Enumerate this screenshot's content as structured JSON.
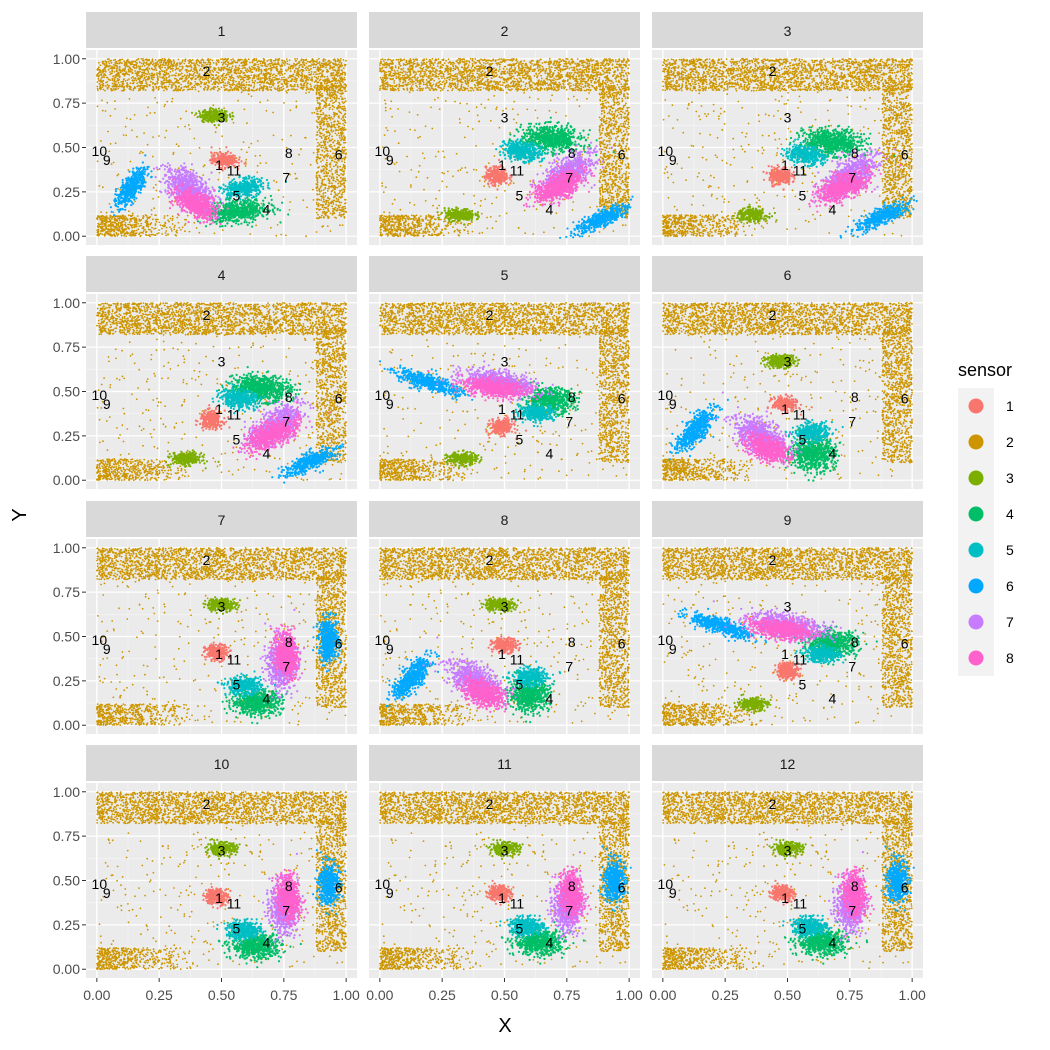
{
  "chart_data": {
    "type": "scatter",
    "faceted": true,
    "facet_labels": [
      "1",
      "2",
      "3",
      "4",
      "5",
      "6",
      "7",
      "8",
      "9",
      "10",
      "11",
      "12"
    ],
    "xlabel": "X",
    "ylabel": "Y",
    "xlim": [
      0,
      1
    ],
    "ylim": [
      0,
      1
    ],
    "x_ticks": [
      "0.00",
      "0.25",
      "0.50",
      "0.75",
      "1.00"
    ],
    "y_ticks": [
      "0.00",
      "0.25",
      "0.50",
      "0.75",
      "1.00"
    ],
    "grid": true,
    "legend": {
      "title": "sensor",
      "placement": "right",
      "entries": [
        {
          "label": "1",
          "color": "#F8766D"
        },
        {
          "label": "2",
          "color": "#CD9600"
        },
        {
          "label": "3",
          "color": "#7CAE00"
        },
        {
          "label": "4",
          "color": "#00BE67"
        },
        {
          "label": "5",
          "color": "#00BFC4"
        },
        {
          "label": "6",
          "color": "#00A9FF"
        },
        {
          "label": "7",
          "color": "#C77CFF"
        },
        {
          "label": "8",
          "color": "#FF61CC"
        }
      ]
    },
    "node_labels": {
      "1": [
        0.49,
        0.4
      ],
      "2": [
        0.44,
        0.93
      ],
      "3": [
        0.5,
        0.67
      ],
      "4": [
        0.68,
        0.15
      ],
      "5": [
        0.56,
        0.23
      ],
      "6": [
        0.97,
        0.46
      ],
      "7": [
        0.76,
        0.33
      ],
      "8": [
        0.77,
        0.47
      ],
      "9": [
        0.04,
        0.43
      ],
      "10": [
        0.01,
        0.48
      ],
      "11": [
        0.55,
        0.37
      ]
    },
    "panels": [
      {
        "facet": "1",
        "clusters": [
          {
            "sensor": "1",
            "cx": 0.51,
            "cy": 0.43,
            "rx": 0.05,
            "ry": 0.04,
            "rot": 0
          },
          {
            "sensor": "3",
            "cx": 0.47,
            "cy": 0.68,
            "rx": 0.06,
            "ry": 0.035,
            "rot": 0
          },
          {
            "sensor": "4",
            "cx": 0.57,
            "cy": 0.14,
            "rx": 0.12,
            "ry": 0.06,
            "rot": 10
          },
          {
            "sensor": "5",
            "cx": 0.59,
            "cy": 0.27,
            "rx": 0.08,
            "ry": 0.05,
            "rot": 20
          },
          {
            "sensor": "6",
            "cx": 0.14,
            "cy": 0.28,
            "rx": 0.04,
            "ry": 0.12,
            "rot": -25
          },
          {
            "sensor": "7",
            "cx": 0.37,
            "cy": 0.27,
            "rx": 0.07,
            "ry": 0.12,
            "rot": 35
          },
          {
            "sensor": "8",
            "cx": 0.4,
            "cy": 0.18,
            "rx": 0.06,
            "ry": 0.1,
            "rot": 45
          }
        ]
      },
      {
        "facet": "2",
        "clusters": [
          {
            "sensor": "1",
            "cx": 0.47,
            "cy": 0.34,
            "rx": 0.045,
            "ry": 0.05,
            "rot": 0
          },
          {
            "sensor": "3",
            "cx": 0.32,
            "cy": 0.12,
            "rx": 0.06,
            "ry": 0.035,
            "rot": 0
          },
          {
            "sensor": "4",
            "cx": 0.69,
            "cy": 0.55,
            "rx": 0.12,
            "ry": 0.07,
            "rot": -10
          },
          {
            "sensor": "5",
            "cx": 0.57,
            "cy": 0.48,
            "rx": 0.08,
            "ry": 0.05,
            "rot": -15
          },
          {
            "sensor": "6",
            "cx": 0.89,
            "cy": 0.1,
            "rx": 0.04,
            "ry": 0.12,
            "rot": -55
          },
          {
            "sensor": "7",
            "cx": 0.75,
            "cy": 0.35,
            "rx": 0.07,
            "ry": 0.14,
            "rot": -40
          },
          {
            "sensor": "8",
            "cx": 0.72,
            "cy": 0.28,
            "rx": 0.06,
            "ry": 0.12,
            "rot": -50
          }
        ]
      },
      {
        "facet": "3",
        "clusters": [
          {
            "sensor": "1",
            "cx": 0.47,
            "cy": 0.34,
            "rx": 0.045,
            "ry": 0.05,
            "rot": 0
          },
          {
            "sensor": "3",
            "cx": 0.36,
            "cy": 0.12,
            "rx": 0.06,
            "ry": 0.035,
            "rot": 0
          },
          {
            "sensor": "4",
            "cx": 0.68,
            "cy": 0.53,
            "rx": 0.12,
            "ry": 0.07,
            "rot": -10
          },
          {
            "sensor": "5",
            "cx": 0.57,
            "cy": 0.46,
            "rx": 0.08,
            "ry": 0.05,
            "rot": -15
          },
          {
            "sensor": "6",
            "cx": 0.88,
            "cy": 0.11,
            "rx": 0.04,
            "ry": 0.12,
            "rot": -55
          },
          {
            "sensor": "7",
            "cx": 0.75,
            "cy": 0.34,
            "rx": 0.07,
            "ry": 0.14,
            "rot": -40
          },
          {
            "sensor": "8",
            "cx": 0.72,
            "cy": 0.28,
            "rx": 0.06,
            "ry": 0.12,
            "rot": -50
          }
        ]
      },
      {
        "facet": "4",
        "clusters": [
          {
            "sensor": "1",
            "cx": 0.46,
            "cy": 0.34,
            "rx": 0.045,
            "ry": 0.05,
            "rot": 0
          },
          {
            "sensor": "3",
            "cx": 0.36,
            "cy": 0.12,
            "rx": 0.06,
            "ry": 0.035,
            "rot": 0
          },
          {
            "sensor": "4",
            "cx": 0.66,
            "cy": 0.52,
            "rx": 0.12,
            "ry": 0.07,
            "rot": -10
          },
          {
            "sensor": "5",
            "cx": 0.57,
            "cy": 0.46,
            "rx": 0.08,
            "ry": 0.05,
            "rot": -15
          },
          {
            "sensor": "6",
            "cx": 0.85,
            "cy": 0.1,
            "rx": 0.04,
            "ry": 0.12,
            "rot": -55
          },
          {
            "sensor": "7",
            "cx": 0.72,
            "cy": 0.31,
            "rx": 0.07,
            "ry": 0.14,
            "rot": -40
          },
          {
            "sensor": "8",
            "cx": 0.7,
            "cy": 0.26,
            "rx": 0.06,
            "ry": 0.12,
            "rot": -50
          }
        ]
      },
      {
        "facet": "5",
        "clusters": [
          {
            "sensor": "1",
            "cx": 0.49,
            "cy": 0.3,
            "rx": 0.045,
            "ry": 0.045,
            "rot": 0
          },
          {
            "sensor": "3",
            "cx": 0.33,
            "cy": 0.12,
            "rx": 0.06,
            "ry": 0.035,
            "rot": 0
          },
          {
            "sensor": "4",
            "cx": 0.68,
            "cy": 0.45,
            "rx": 0.1,
            "ry": 0.07,
            "rot": 0
          },
          {
            "sensor": "5",
            "cx": 0.63,
            "cy": 0.38,
            "rx": 0.07,
            "ry": 0.045,
            "rot": 0
          },
          {
            "sensor": "6",
            "cx": 0.2,
            "cy": 0.55,
            "rx": 0.04,
            "ry": 0.14,
            "rot": 65
          },
          {
            "sensor": "7",
            "cx": 0.48,
            "cy": 0.55,
            "rx": 0.06,
            "ry": 0.15,
            "rot": 75
          },
          {
            "sensor": "8",
            "cx": 0.46,
            "cy": 0.52,
            "rx": 0.05,
            "ry": 0.13,
            "rot": 80
          }
        ]
      },
      {
        "facet": "6",
        "clusters": [
          {
            "sensor": "1",
            "cx": 0.49,
            "cy": 0.43,
            "rx": 0.05,
            "ry": 0.04,
            "rot": 0
          },
          {
            "sensor": "3",
            "cx": 0.47,
            "cy": 0.67,
            "rx": 0.06,
            "ry": 0.035,
            "rot": 0
          },
          {
            "sensor": "4",
            "cx": 0.6,
            "cy": 0.15,
            "rx": 0.09,
            "ry": 0.09,
            "rot": 0
          },
          {
            "sensor": "5",
            "cx": 0.6,
            "cy": 0.27,
            "rx": 0.07,
            "ry": 0.05,
            "rot": 10
          },
          {
            "sensor": "6",
            "cx": 0.13,
            "cy": 0.28,
            "rx": 0.045,
            "ry": 0.13,
            "rot": -30
          },
          {
            "sensor": "7",
            "cx": 0.39,
            "cy": 0.25,
            "rx": 0.07,
            "ry": 0.13,
            "rot": 45
          },
          {
            "sensor": "8",
            "cx": 0.42,
            "cy": 0.18,
            "rx": 0.06,
            "ry": 0.1,
            "rot": 50
          }
        ]
      },
      {
        "facet": "7",
        "clusters": [
          {
            "sensor": "1",
            "cx": 0.48,
            "cy": 0.41,
            "rx": 0.045,
            "ry": 0.045,
            "rot": 0
          },
          {
            "sensor": "3",
            "cx": 0.5,
            "cy": 0.68,
            "rx": 0.06,
            "ry": 0.035,
            "rot": 0
          },
          {
            "sensor": "4",
            "cx": 0.64,
            "cy": 0.13,
            "rx": 0.1,
            "ry": 0.07,
            "rot": 0
          },
          {
            "sensor": "5",
            "cx": 0.59,
            "cy": 0.22,
            "rx": 0.07,
            "ry": 0.05,
            "rot": 0
          },
          {
            "sensor": "6",
            "cx": 0.93,
            "cy": 0.48,
            "rx": 0.04,
            "ry": 0.12,
            "rot": 0
          },
          {
            "sensor": "7",
            "cx": 0.74,
            "cy": 0.35,
            "rx": 0.055,
            "ry": 0.14,
            "rot": 0
          },
          {
            "sensor": "8",
            "cx": 0.76,
            "cy": 0.4,
            "rx": 0.045,
            "ry": 0.13,
            "rot": 5
          }
        ]
      },
      {
        "facet": "8",
        "clusters": [
          {
            "sensor": "1",
            "cx": 0.5,
            "cy": 0.45,
            "rx": 0.05,
            "ry": 0.04,
            "rot": 0
          },
          {
            "sensor": "3",
            "cx": 0.48,
            "cy": 0.68,
            "rx": 0.06,
            "ry": 0.035,
            "rot": 0
          },
          {
            "sensor": "4",
            "cx": 0.6,
            "cy": 0.17,
            "rx": 0.08,
            "ry": 0.09,
            "rot": 0
          },
          {
            "sensor": "5",
            "cx": 0.6,
            "cy": 0.27,
            "rx": 0.07,
            "ry": 0.05,
            "rot": 10
          },
          {
            "sensor": "6",
            "cx": 0.13,
            "cy": 0.27,
            "rx": 0.045,
            "ry": 0.13,
            "rot": -30
          },
          {
            "sensor": "7",
            "cx": 0.38,
            "cy": 0.25,
            "rx": 0.07,
            "ry": 0.13,
            "rot": 45
          },
          {
            "sensor": "8",
            "cx": 0.42,
            "cy": 0.18,
            "rx": 0.06,
            "ry": 0.1,
            "rot": 50
          }
        ]
      },
      {
        "facet": "9",
        "clusters": [
          {
            "sensor": "1",
            "cx": 0.5,
            "cy": 0.31,
            "rx": 0.045,
            "ry": 0.045,
            "rot": 0
          },
          {
            "sensor": "3",
            "cx": 0.36,
            "cy": 0.12,
            "rx": 0.06,
            "ry": 0.035,
            "rot": 0
          },
          {
            "sensor": "4",
            "cx": 0.68,
            "cy": 0.46,
            "rx": 0.1,
            "ry": 0.07,
            "rot": 0
          },
          {
            "sensor": "5",
            "cx": 0.64,
            "cy": 0.4,
            "rx": 0.07,
            "ry": 0.045,
            "rot": 0
          },
          {
            "sensor": "6",
            "cx": 0.23,
            "cy": 0.56,
            "rx": 0.04,
            "ry": 0.14,
            "rot": 65
          },
          {
            "sensor": "7",
            "cx": 0.5,
            "cy": 0.56,
            "rx": 0.06,
            "ry": 0.15,
            "rot": 75
          },
          {
            "sensor": "8",
            "cx": 0.48,
            "cy": 0.54,
            "rx": 0.05,
            "ry": 0.13,
            "rot": 80
          }
        ]
      },
      {
        "facet": "10",
        "clusters": [
          {
            "sensor": "1",
            "cx": 0.48,
            "cy": 0.41,
            "rx": 0.045,
            "ry": 0.045,
            "rot": 0
          },
          {
            "sensor": "3",
            "cx": 0.5,
            "cy": 0.68,
            "rx": 0.06,
            "ry": 0.035,
            "rot": 0
          },
          {
            "sensor": "4",
            "cx": 0.64,
            "cy": 0.13,
            "rx": 0.1,
            "ry": 0.07,
            "rot": 0
          },
          {
            "sensor": "5",
            "cx": 0.59,
            "cy": 0.22,
            "rx": 0.07,
            "ry": 0.05,
            "rot": 0
          },
          {
            "sensor": "6",
            "cx": 0.93,
            "cy": 0.48,
            "rx": 0.04,
            "ry": 0.12,
            "rot": 0
          },
          {
            "sensor": "7",
            "cx": 0.75,
            "cy": 0.35,
            "rx": 0.055,
            "ry": 0.14,
            "rot": 0
          },
          {
            "sensor": "8",
            "cx": 0.77,
            "cy": 0.4,
            "rx": 0.045,
            "ry": 0.13,
            "rot": 5
          }
        ]
      },
      {
        "facet": "11",
        "clusters": [
          {
            "sensor": "1",
            "cx": 0.48,
            "cy": 0.43,
            "rx": 0.045,
            "ry": 0.045,
            "rot": 0
          },
          {
            "sensor": "3",
            "cx": 0.5,
            "cy": 0.68,
            "rx": 0.06,
            "ry": 0.035,
            "rot": 0
          },
          {
            "sensor": "4",
            "cx": 0.64,
            "cy": 0.15,
            "rx": 0.1,
            "ry": 0.07,
            "rot": 0
          },
          {
            "sensor": "5",
            "cx": 0.59,
            "cy": 0.24,
            "rx": 0.07,
            "ry": 0.05,
            "rot": 0
          },
          {
            "sensor": "6",
            "cx": 0.94,
            "cy": 0.5,
            "rx": 0.04,
            "ry": 0.12,
            "rot": 0
          },
          {
            "sensor": "7",
            "cx": 0.75,
            "cy": 0.36,
            "rx": 0.055,
            "ry": 0.14,
            "rot": 0
          },
          {
            "sensor": "8",
            "cx": 0.77,
            "cy": 0.42,
            "rx": 0.045,
            "ry": 0.13,
            "rot": 5
          }
        ]
      },
      {
        "facet": "12",
        "clusters": [
          {
            "sensor": "1",
            "cx": 0.48,
            "cy": 0.43,
            "rx": 0.045,
            "ry": 0.045,
            "rot": 0
          },
          {
            "sensor": "3",
            "cx": 0.5,
            "cy": 0.68,
            "rx": 0.06,
            "ry": 0.035,
            "rot": 0
          },
          {
            "sensor": "4",
            "cx": 0.64,
            "cy": 0.15,
            "rx": 0.1,
            "ry": 0.07,
            "rot": 0
          },
          {
            "sensor": "5",
            "cx": 0.59,
            "cy": 0.24,
            "rx": 0.07,
            "ry": 0.05,
            "rot": 0
          },
          {
            "sensor": "6",
            "cx": 0.94,
            "cy": 0.5,
            "rx": 0.04,
            "ry": 0.12,
            "rot": 0
          },
          {
            "sensor": "7",
            "cx": 0.75,
            "cy": 0.36,
            "rx": 0.055,
            "ry": 0.14,
            "rot": 0
          },
          {
            "sensor": "8",
            "cx": 0.77,
            "cy": 0.42,
            "rx": 0.045,
            "ry": 0.13,
            "rot": 5
          }
        ]
      }
    ]
  }
}
